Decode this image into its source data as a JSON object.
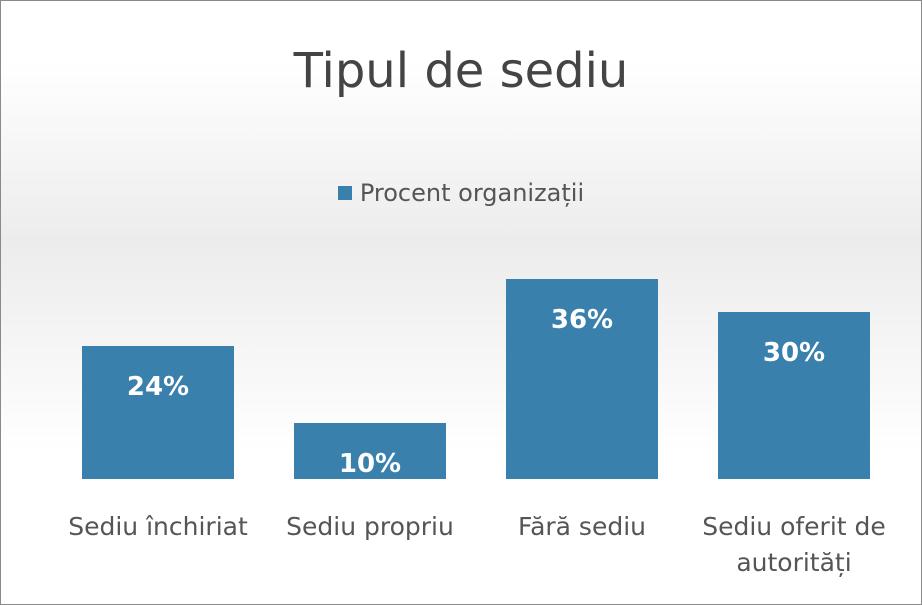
{
  "chart_data": {
    "type": "bar",
    "title": "Tipul de sediu",
    "categories": [
      "Sediu închiriat",
      "Sediu propriu",
      "Fără sediu",
      "Sediu oferit de autorități"
    ],
    "series": [
      {
        "name": "Procent organizații",
        "color": "#3a80ad",
        "values": [
          24,
          10,
          36,
          30
        ],
        "value_labels": [
          "24%",
          "10%",
          "36%",
          "30%"
        ]
      }
    ],
    "legend": "top"
  }
}
